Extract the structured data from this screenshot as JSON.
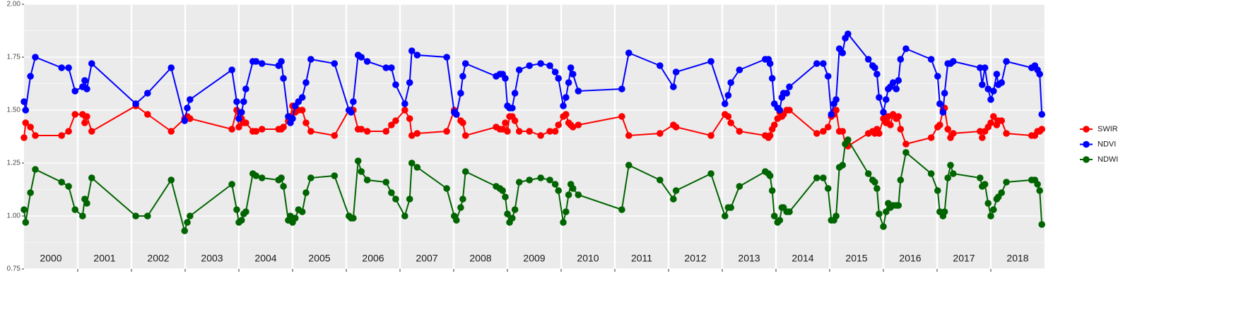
{
  "chart_data": {
    "type": "line",
    "x": [
      2000.0,
      2000.03,
      2000.12,
      2000.21,
      2000.7,
      2000.83,
      2000.95,
      2001.09,
      2001.13,
      2001.17,
      2001.26,
      2002.08,
      2002.3,
      2002.74,
      2002.99,
      2003.04,
      2003.09,
      2003.87,
      2003.96,
      2004.0,
      2004.05,
      2004.09,
      2004.13,
      2004.26,
      2004.32,
      2004.43,
      2004.74,
      2004.79,
      2004.83,
      2004.92,
      2004.96,
      2005.0,
      2005.05,
      2005.11,
      2005.18,
      2005.25,
      2005.34,
      2005.78,
      2006.05,
      2006.09,
      2006.13,
      2006.22,
      2006.28,
      2006.39,
      2006.74,
      2006.84,
      2006.92,
      2007.09,
      2007.18,
      2007.22,
      2007.32,
      2007.87,
      2008.01,
      2008.05,
      2008.13,
      2008.17,
      2008.22,
      2008.79,
      2008.86,
      2008.91,
      2008.96,
      2009.0,
      2009.04,
      2009.09,
      2009.14,
      2009.22,
      2009.41,
      2009.62,
      2009.79,
      2009.89,
      2009.95,
      2010.04,
      2010.09,
      2010.14,
      2010.18,
      2010.22,
      2010.32,
      2011.13,
      2011.26,
      2011.84,
      2012.09,
      2012.14,
      2012.79,
      2013.05,
      2013.11,
      2013.16,
      2013.32,
      2013.8,
      2013.86,
      2013.89,
      2013.93,
      2013.97,
      2014.03,
      2014.07,
      2014.11,
      2014.14,
      2014.2,
      2014.25,
      2014.76,
      2014.88,
      2014.97,
      2015.03,
      2015.08,
      2015.12,
      2015.18,
      2015.24,
      2015.29,
      2015.34,
      2015.72,
      2015.8,
      2015.84,
      2015.88,
      2015.92,
      2016.0,
      2016.05,
      2016.09,
      2016.13,
      2016.18,
      2016.24,
      2016.28,
      2016.32,
      2016.42,
      2016.89,
      2017.01,
      2017.05,
      2017.11,
      2017.14,
      2017.2,
      2017.25,
      2017.3,
      2017.8,
      2017.84,
      2017.89,
      2017.95,
      2018.0,
      2018.05,
      2018.11,
      2018.14,
      2018.2,
      2018.29,
      2018.76,
      2018.82,
      2018.87,
      2018.91,
      2018.95
    ],
    "series": [
      {
        "name": "SWIR",
        "color": "#ff0000",
        "values": [
          1.37,
          1.44,
          1.42,
          1.38,
          1.38,
          1.4,
          1.48,
          1.48,
          1.44,
          1.47,
          1.4,
          1.52,
          1.48,
          1.4,
          1.46,
          1.47,
          1.46,
          1.41,
          1.5,
          1.42,
          1.46,
          1.44,
          1.44,
          1.4,
          1.4,
          1.41,
          1.41,
          1.41,
          1.42,
          1.45,
          1.47,
          1.52,
          1.49,
          1.5,
          1.5,
          1.44,
          1.4,
          1.38,
          1.5,
          1.5,
          1.5,
          1.41,
          1.41,
          1.4,
          1.4,
          1.43,
          1.45,
          1.5,
          1.46,
          1.38,
          1.39,
          1.4,
          1.5,
          1.48,
          1.45,
          1.44,
          1.38,
          1.42,
          1.41,
          1.41,
          1.44,
          1.4,
          1.47,
          1.47,
          1.45,
          1.4,
          1.4,
          1.38,
          1.4,
          1.4,
          1.43,
          1.47,
          1.48,
          1.44,
          1.43,
          1.42,
          1.43,
          1.47,
          1.38,
          1.39,
          1.43,
          1.42,
          1.38,
          1.48,
          1.47,
          1.44,
          1.4,
          1.38,
          1.37,
          1.38,
          1.41,
          1.43,
          1.46,
          1.49,
          1.47,
          1.48,
          1.5,
          1.5,
          1.39,
          1.4,
          1.42,
          1.47,
          1.48,
          1.5,
          1.4,
          1.4,
          1.34,
          1.33,
          1.39,
          1.4,
          1.39,
          1.41,
          1.39,
          1.46,
          1.44,
          1.47,
          1.43,
          1.48,
          1.46,
          1.47,
          1.41,
          1.34,
          1.37,
          1.42,
          1.43,
          1.5,
          1.51,
          1.41,
          1.37,
          1.39,
          1.4,
          1.37,
          1.4,
          1.42,
          1.44,
          1.47,
          1.43,
          1.45,
          1.45,
          1.39,
          1.38,
          1.38,
          1.4,
          1.4,
          1.41
        ]
      },
      {
        "name": "NDVI",
        "color": "#0000ff",
        "values": [
          1.54,
          1.5,
          1.66,
          1.75,
          1.7,
          1.7,
          1.59,
          1.61,
          1.64,
          1.6,
          1.72,
          1.53,
          1.58,
          1.7,
          1.45,
          1.51,
          1.55,
          1.69,
          1.54,
          1.46,
          1.49,
          1.54,
          1.6,
          1.73,
          1.73,
          1.72,
          1.71,
          1.73,
          1.65,
          1.47,
          1.44,
          1.46,
          1.52,
          1.54,
          1.56,
          1.63,
          1.74,
          1.72,
          1.5,
          1.49,
          1.54,
          1.76,
          1.75,
          1.73,
          1.7,
          1.7,
          1.62,
          1.53,
          1.63,
          1.78,
          1.76,
          1.75,
          1.49,
          1.48,
          1.58,
          1.66,
          1.72,
          1.66,
          1.67,
          1.67,
          1.65,
          1.52,
          1.51,
          1.51,
          1.58,
          1.69,
          1.71,
          1.72,
          1.71,
          1.68,
          1.65,
          1.52,
          1.56,
          1.63,
          1.7,
          1.67,
          1.59,
          1.6,
          1.77,
          1.71,
          1.61,
          1.68,
          1.73,
          1.53,
          1.57,
          1.63,
          1.69,
          1.74,
          1.74,
          1.72,
          1.65,
          1.53,
          1.51,
          1.5,
          1.56,
          1.58,
          1.58,
          1.61,
          1.72,
          1.72,
          1.66,
          1.48,
          1.53,
          1.55,
          1.79,
          1.77,
          1.84,
          1.86,
          1.74,
          1.71,
          1.7,
          1.67,
          1.56,
          1.49,
          1.55,
          1.6,
          1.61,
          1.63,
          1.6,
          1.64,
          1.74,
          1.79,
          1.74,
          1.66,
          1.53,
          1.49,
          1.58,
          1.72,
          1.72,
          1.73,
          1.7,
          1.62,
          1.7,
          1.6,
          1.55,
          1.59,
          1.67,
          1.62,
          1.63,
          1.73,
          1.7,
          1.71,
          1.69,
          1.67,
          1.48
        ]
      },
      {
        "name": "NDWI",
        "color": "#006400",
        "values": [
          1.03,
          0.97,
          1.11,
          1.22,
          1.16,
          1.14,
          1.03,
          1.0,
          1.08,
          1.06,
          1.18,
          1.0,
          1.0,
          1.17,
          0.93,
          0.97,
          1.0,
          1.15,
          1.03,
          0.97,
          0.98,
          1.01,
          1.02,
          1.2,
          1.19,
          1.18,
          1.17,
          1.18,
          1.14,
          0.98,
          1.0,
          0.97,
          0.99,
          1.03,
          1.02,
          1.11,
          1.18,
          1.19,
          1.0,
          0.99,
          0.99,
          1.26,
          1.21,
          1.17,
          1.16,
          1.11,
          1.08,
          1.0,
          1.08,
          1.25,
          1.23,
          1.13,
          1.0,
          0.98,
          1.04,
          1.08,
          1.21,
          1.14,
          1.13,
          1.12,
          1.09,
          1.01,
          0.97,
          0.99,
          1.03,
          1.16,
          1.17,
          1.18,
          1.17,
          1.15,
          1.12,
          0.97,
          1.02,
          1.1,
          1.15,
          1.13,
          1.1,
          1.03,
          1.24,
          1.17,
          1.08,
          1.12,
          1.2,
          1.0,
          1.04,
          1.04,
          1.14,
          1.21,
          1.2,
          1.19,
          1.12,
          1.0,
          0.97,
          0.98,
          1.04,
          1.04,
          1.02,
          1.02,
          1.18,
          1.18,
          1.13,
          0.98,
          0.98,
          1.0,
          1.23,
          1.24,
          1.34,
          1.36,
          1.2,
          1.17,
          1.16,
          1.13,
          1.01,
          0.95,
          1.02,
          1.06,
          1.04,
          1.05,
          1.05,
          1.05,
          1.17,
          1.3,
          1.2,
          1.12,
          1.02,
          1.0,
          1.02,
          1.18,
          1.24,
          1.2,
          1.18,
          1.14,
          1.15,
          1.06,
          1.0,
          1.03,
          1.08,
          1.09,
          1.11,
          1.16,
          1.17,
          1.17,
          1.15,
          1.12,
          0.96
        ]
      }
    ],
    "xlim": [
      2000,
      2019
    ],
    "xticks": [
      2001,
      2002,
      2003,
      2004,
      2005,
      2006,
      2007,
      2008,
      2009,
      2010,
      2011,
      2012,
      2013,
      2014,
      2015,
      2016,
      2017,
      2018
    ],
    "year_labels": [
      2000,
      2001,
      2002,
      2003,
      2004,
      2005,
      2006,
      2007,
      2008,
      2009,
      2010,
      2011,
      2012,
      2013,
      2014,
      2015,
      2016,
      2017,
      2018
    ],
    "ylim": [
      0.75,
      2.0
    ],
    "yticks": [
      0.75,
      {
        "value": 1,
        "label": "1.00"
      },
      1.25,
      {
        "value": 1.5,
        "label": "1.50"
      },
      1.75,
      {
        "value": 2,
        "label": "2.00"
      }
    ],
    "grid": true,
    "legend": "right"
  }
}
